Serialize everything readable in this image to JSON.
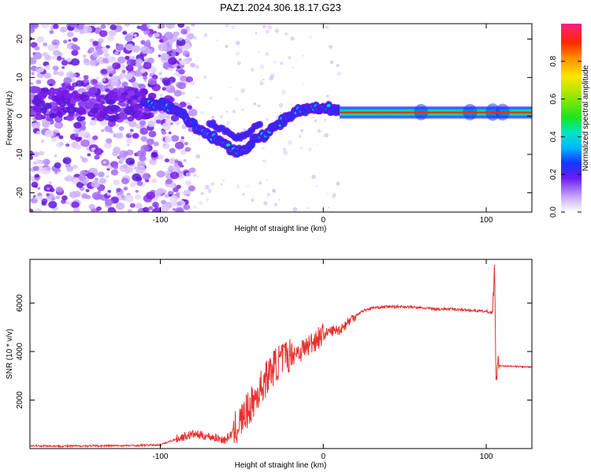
{
  "title": "PAZ1.2024.306.18.17.G23",
  "chart_data": [
    {
      "type": "heatmap",
      "title": "PAZ1.2024.306.18.17.G23",
      "xlabel": "Height of straight line (km)",
      "ylabel": "Frequency (Hz)",
      "xlim": [
        -180,
        128
      ],
      "ylim": [
        -25,
        24
      ],
      "xticks": [
        -100,
        0,
        100
      ],
      "xtick_labels": [
        "-100",
        "0",
        "100"
      ],
      "yticks": [
        -20,
        -10,
        0,
        10,
        20
      ],
      "ytick_labels": [
        "-20",
        "-10",
        "0",
        "10",
        "20"
      ],
      "ridge": {
        "x": [
          -110,
          -100,
          -92,
          -85,
          -78,
          -70,
          -62,
          -55,
          -48,
          -42,
          -36,
          -30,
          -24,
          -18,
          -12,
          -6,
          0,
          6,
          12,
          30,
          60,
          90,
          104,
          110,
          128
        ],
        "y": [
          3,
          3,
          2,
          0,
          -3,
          -5,
          -7,
          -9,
          -9,
          -6,
          -5,
          -3,
          -1,
          1,
          1.5,
          2,
          2.5,
          1.5,
          1,
          0.8,
          0.8,
          1,
          1.3,
          1.4,
          1.5
        ]
      },
      "colorbar": {
        "label": "Normalized spectral amplitude",
        "range": [
          0,
          1
        ],
        "ticks": [
          0.0,
          0.2,
          0.4,
          0.6,
          0.8
        ],
        "tick_labels": [
          "0.0",
          "0.2",
          "0.4",
          "0.6",
          "0.8"
        ]
      }
    },
    {
      "type": "line",
      "xlabel": "Height of straight line (km)",
      "ylabel": "SNR (10 * v/v)",
      "xlim": [
        -180,
        128
      ],
      "ylim": [
        0,
        7800
      ],
      "xticks": [
        -100,
        0,
        100
      ],
      "xtick_labels": [
        "-100",
        "0",
        "100"
      ],
      "yticks": [
        2000,
        4000,
        6000
      ],
      "ytick_labels": [
        "2000",
        "4000",
        "6000"
      ],
      "line_color": "#e8302e",
      "series": [
        {
          "x": [
            -180,
            -160,
            -140,
            -120,
            -100,
            -90,
            -80,
            -70,
            -60,
            -55,
            -50,
            -45,
            -40,
            -35,
            -30,
            -25,
            -20,
            -15,
            -10,
            -5,
            0,
            5,
            10,
            15,
            20,
            25,
            30,
            40,
            50,
            60,
            70,
            80,
            90,
            100,
            104,
            105,
            106,
            107,
            108,
            110,
            120,
            128
          ],
          "values": [
            120,
            100,
            110,
            120,
            150,
            400,
            600,
            500,
            350,
            700,
            1200,
            1700,
            2300,
            2900,
            3400,
            3700,
            3900,
            4000,
            4200,
            4500,
            4700,
            4850,
            4900,
            5200,
            5500,
            5700,
            5800,
            5850,
            5850,
            5800,
            5750,
            5750,
            5700,
            5650,
            5600,
            7500,
            3000,
            3400,
            3420,
            3400,
            3380,
            3350
          ]
        }
      ]
    }
  ]
}
